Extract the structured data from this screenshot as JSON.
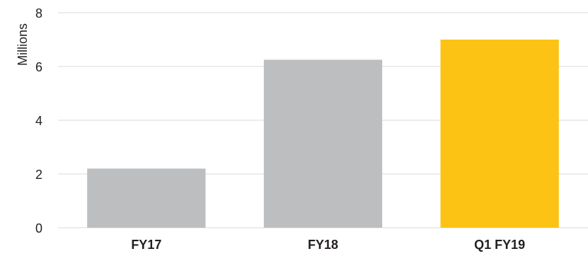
{
  "chart_data": {
    "type": "bar",
    "title": "",
    "xlabel": "",
    "ylabel": "Millions",
    "categories": [
      "FY17",
      "FY18",
      "Q1 FY19"
    ],
    "values": [
      2.2,
      6.25,
      7.0
    ],
    "ylim": [
      0,
      8
    ],
    "yticks": [
      0,
      2,
      4,
      6,
      8
    ],
    "grid": true,
    "legend": "none",
    "colors": {
      "bars": [
        "#bcbec0",
        "#bcbec0",
        "#fcc314"
      ],
      "grid": "#d9d9d9",
      "text": "#231f20"
    }
  }
}
